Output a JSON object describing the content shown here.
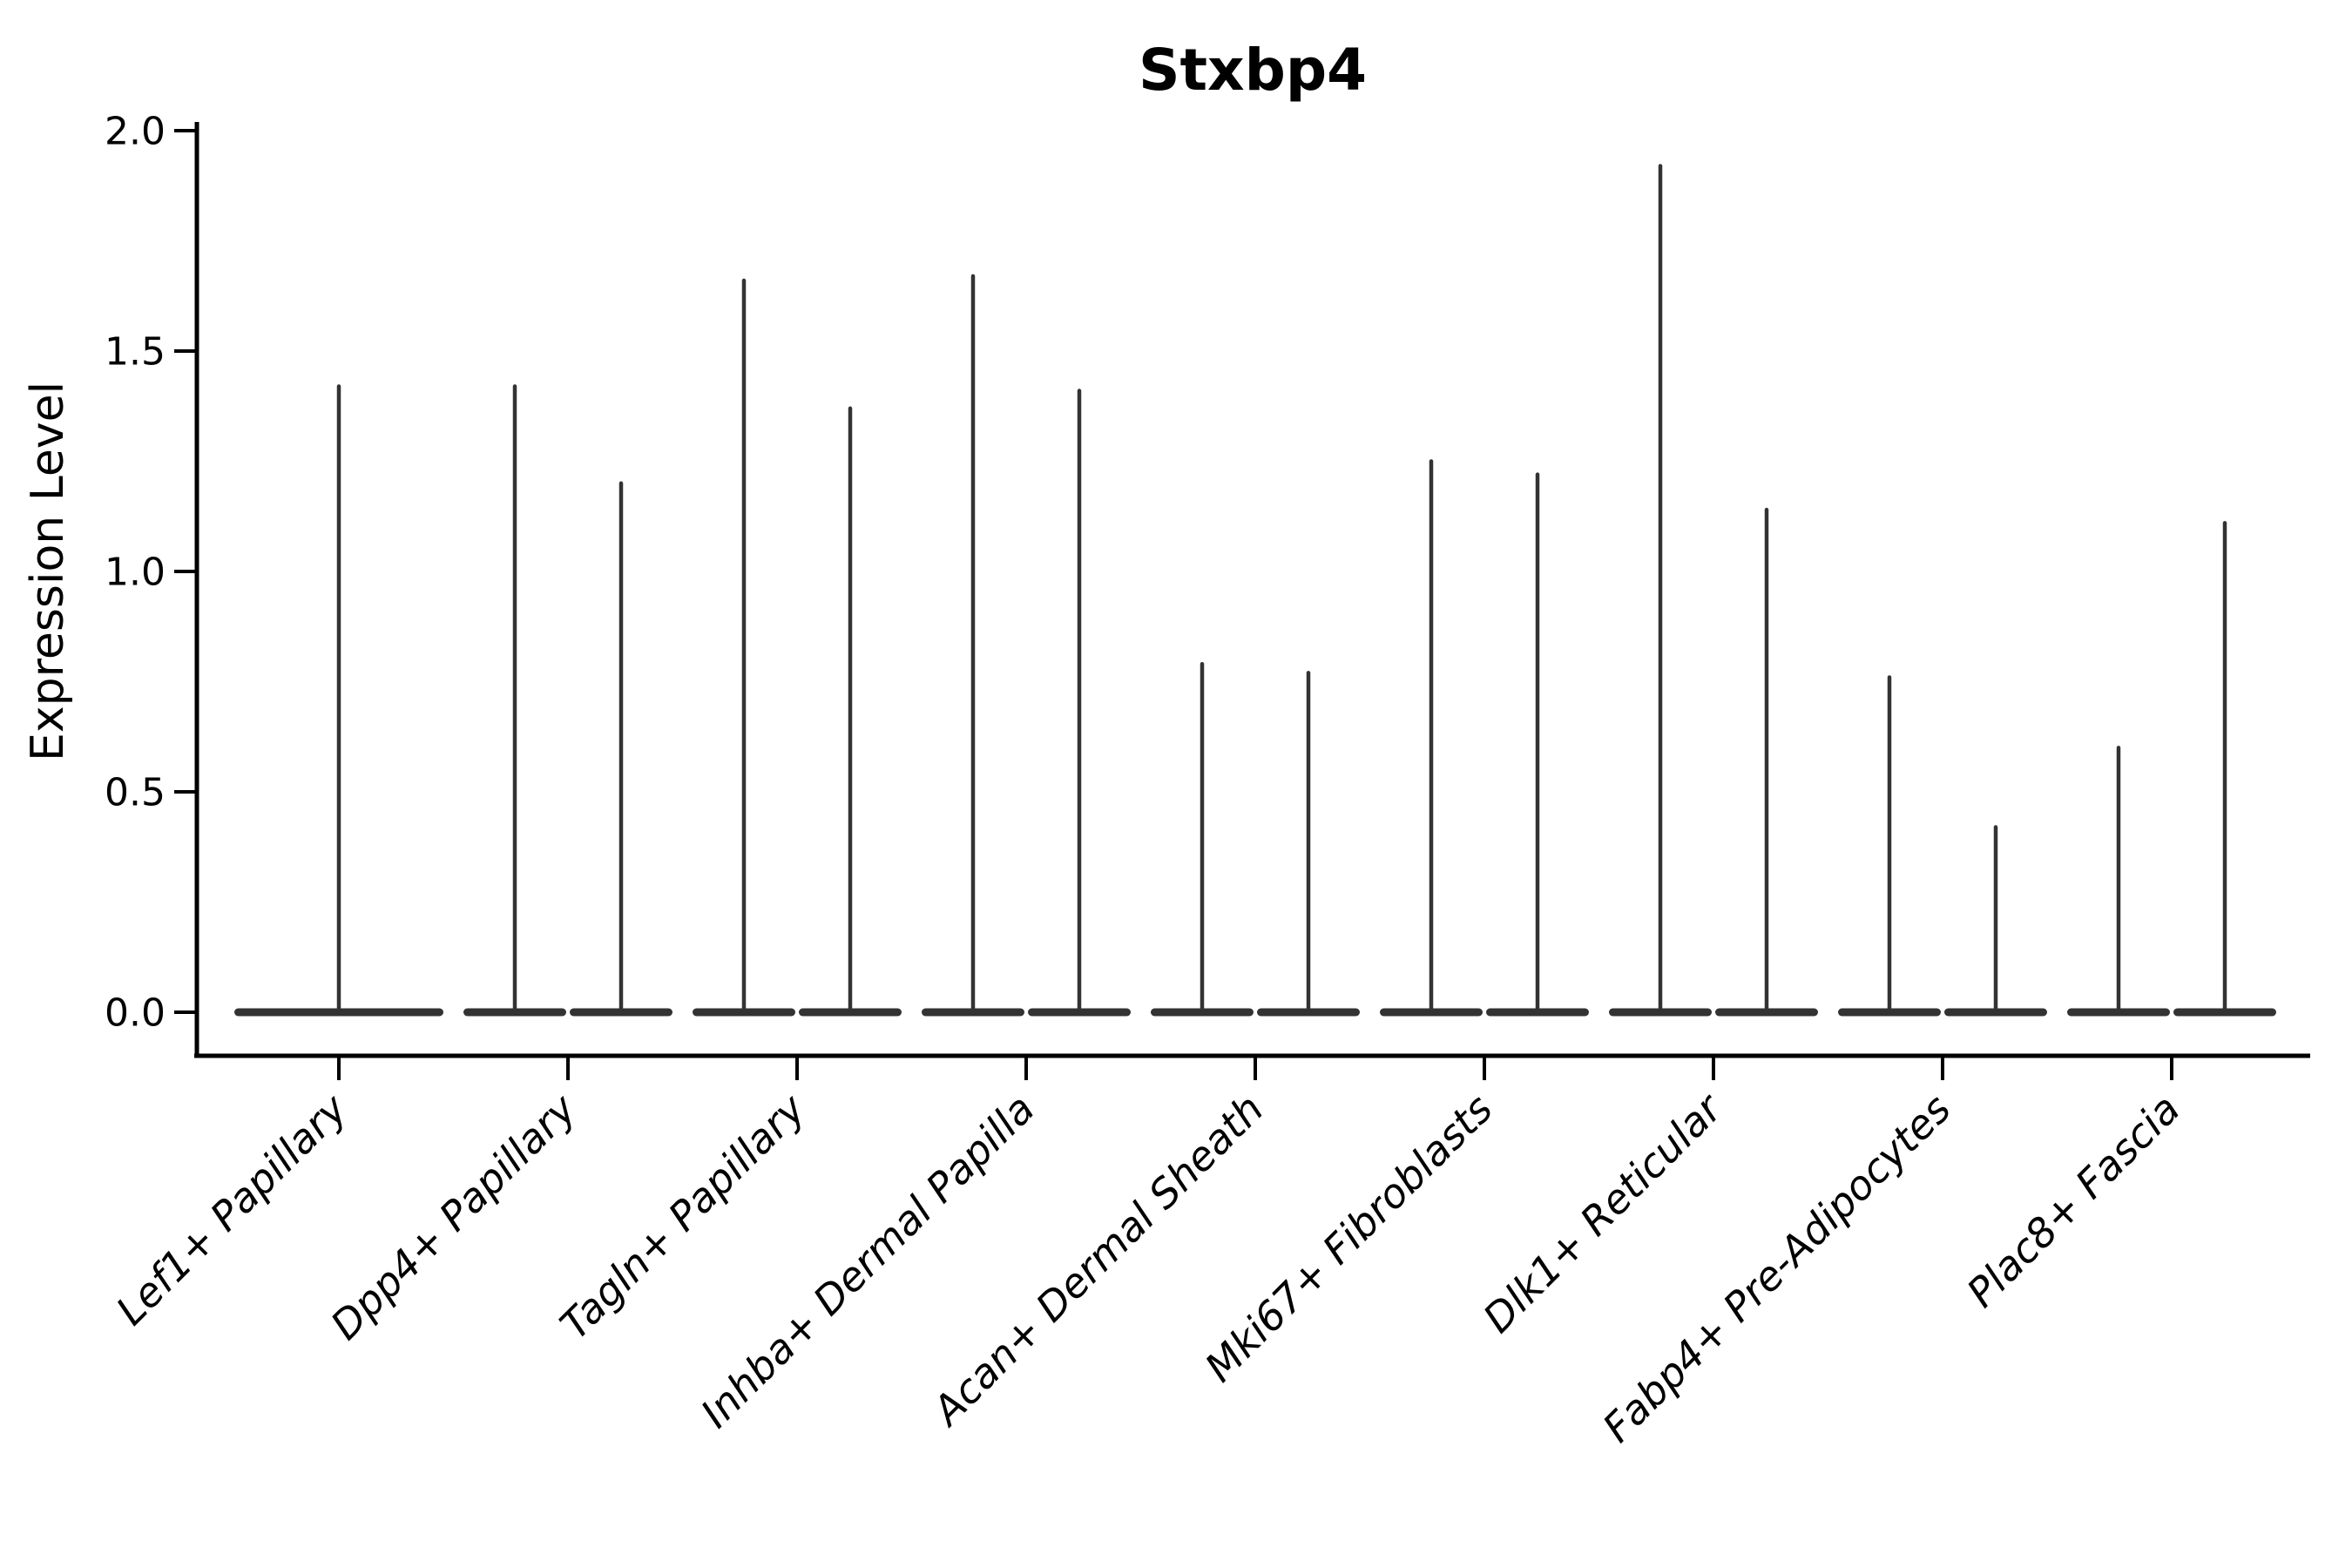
{
  "chart_data": {
    "type": "violin",
    "title": "Stxbp4",
    "xlabel": "",
    "ylabel": "Expression Level",
    "ylim": [
      0.0,
      2.0
    ],
    "yticks": [
      "0.0",
      "0.5",
      "1.0",
      "1.5",
      "2.0"
    ],
    "ytick_values": [
      0.0,
      0.5,
      1.0,
      1.5,
      2.0
    ],
    "grid": false,
    "legend": "none",
    "description": "Violin plot of Stxbp4 expression; most density collapsed at 0 so each violin renders as a flat bar at 0 with a thin spike up to its maximum. First category has one full-width violin; all other categories have two half-width violins.",
    "categories": [
      {
        "label": "Lef1+ Papillary",
        "violin_maxima": [
          1.42
        ]
      },
      {
        "label": "Dpp4+ Papillary",
        "violin_maxima": [
          1.42,
          1.2
        ]
      },
      {
        "label": "Tagln+ Papillary",
        "violin_maxima": [
          1.66,
          1.37
        ]
      },
      {
        "label": "Inhba+ Dermal Papilla",
        "violin_maxima": [
          1.67,
          1.41
        ]
      },
      {
        "label": "Acan+ Dermal Sheath",
        "violin_maxima": [
          0.79,
          0.77
        ]
      },
      {
        "label": "Mki67+ Fibroblasts",
        "violin_maxima": [
          1.25,
          1.22
        ]
      },
      {
        "label": "Dlk1+ Reticular",
        "violin_maxima": [
          1.92,
          1.14
        ]
      },
      {
        "label": "Fabp4+ Pre-Adipocytes",
        "violin_maxima": [
          0.76,
          0.42
        ]
      },
      {
        "label": "Plac8+ Fascia",
        "violin_maxima": [
          0.6,
          1.11
        ]
      }
    ],
    "colors": {
      "violin": "#333333",
      "axis": "#000000",
      "text": "#000000",
      "background": "#ffffff"
    }
  }
}
